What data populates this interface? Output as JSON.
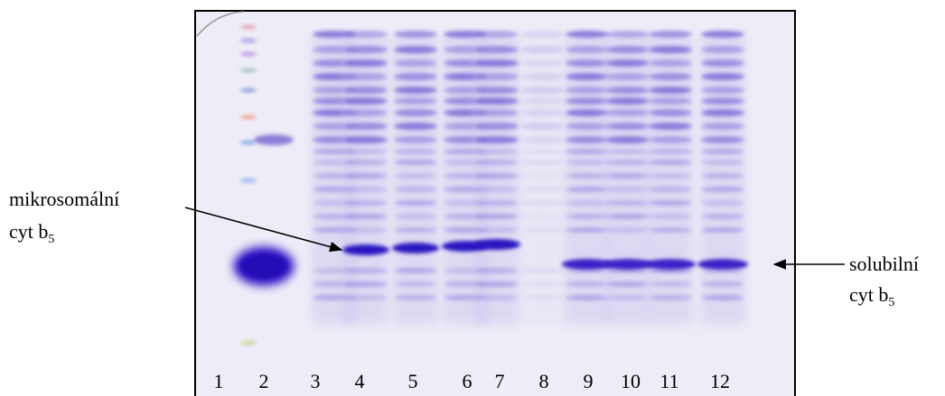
{
  "lanes": [
    "1",
    "2",
    "3",
    "4",
    "5",
    "6",
    "7",
    "8",
    "9",
    "10",
    "11",
    "12"
  ],
  "annotations": [
    {
      "line1": "mikrosomální",
      "line2": "cyt b",
      "sub": "5"
    },
    {
      "line1": "solubilní",
      "line2": "cyt b",
      "sub": "5"
    }
  ]
}
